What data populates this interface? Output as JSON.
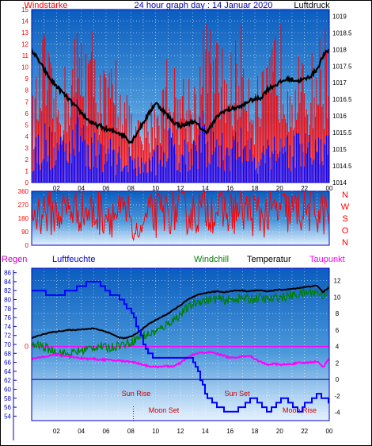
{
  "colors": {
    "wind_red": "#ff0000",
    "wind_blue": "#0000ff",
    "pressure": "#000000",
    "direction": "#ff0000",
    "regen": "#ff00ff",
    "humidity": "#0000ff",
    "windchill": "#008000",
    "temperature": "#000000",
    "dewpoint": "#ff00ff",
    "axis_red": "#ff0000",
    "axis_blue": "#0000cc",
    "sky_top": "#0a5dbf",
    "sky_bottom": "#e6f2ff",
    "sun_event": "#cc0000"
  },
  "chart_data": [
    {
      "type": "bar",
      "title": "24 hour graph day : 14 Januar 2020",
      "left_label": "Windstärke",
      "right_label": "Luftdruck",
      "x_ticks": [
        "02",
        "04",
        "06",
        "08",
        "10",
        "12",
        "14",
        "16",
        "18",
        "20",
        "22",
        "00"
      ],
      "left_ticks": [
        "0",
        "1",
        "2",
        "3",
        "4",
        "5",
        "6",
        "7",
        "8",
        "9",
        "10",
        "11",
        "12",
        "13",
        "14",
        "15"
      ],
      "right_ticks": [
        "1014",
        "1014.5",
        "1015",
        "1015.5",
        "1016",
        "1016.5",
        "1017",
        "1017.5",
        "1018",
        "1018.5",
        "1019"
      ],
      "ylim_left": [
        0,
        15
      ],
      "ylim_right": [
        1014,
        1019.2
      ],
      "series": [
        {
          "key": "gust",
          "x": [
            0,
            1,
            2,
            3,
            4,
            5,
            6,
            7,
            8,
            9,
            10,
            11,
            12,
            13,
            14,
            15,
            16,
            17,
            18,
            19,
            20,
            21,
            22,
            23,
            24
          ],
          "values": [
            7,
            13,
            8,
            11,
            14,
            13,
            9,
            11,
            6,
            5,
            8,
            11,
            9,
            9,
            14,
            12,
            11,
            14,
            9,
            10,
            14,
            12,
            10,
            12,
            14
          ]
        },
        {
          "key": "wind",
          "x": [
            0,
            1,
            2,
            3,
            4,
            5,
            6,
            7,
            8,
            9,
            10,
            11,
            12,
            13,
            14,
            15,
            16,
            17,
            18,
            19,
            20,
            21,
            22,
            23,
            24
          ],
          "values": [
            4,
            5,
            4,
            6,
            7,
            4,
            4,
            3,
            3,
            2,
            3,
            5,
            4,
            4,
            6,
            4,
            4,
            5,
            3,
            4,
            5,
            4,
            4,
            4,
            4
          ]
        },
        {
          "key": "pressure",
          "axis": "right",
          "x": [
            0,
            0.5,
            1,
            1.5,
            2,
            2.5,
            3,
            3.5,
            4,
            4.5,
            5,
            5.5,
            6,
            6.5,
            7,
            7.5,
            8,
            8.5,
            9,
            9.5,
            10,
            10.5,
            11,
            11.5,
            12,
            12.5,
            13,
            13.5,
            14,
            14.5,
            15,
            15.5,
            16,
            16.5,
            17,
            17.5,
            18,
            18.5,
            19,
            19.5,
            20,
            20.5,
            21,
            21.5,
            22,
            22.5,
            23,
            23.5,
            24
          ],
          "values": [
            1018,
            1017.7,
            1017.4,
            1017.1,
            1016.9,
            1016.7,
            1016.5,
            1016.3,
            1016.1,
            1015.9,
            1015.75,
            1015.7,
            1015.6,
            1015.55,
            1015.5,
            1015.4,
            1015.2,
            1015.5,
            1015.8,
            1016.1,
            1016.4,
            1016.2,
            1016,
            1015.8,
            1015.7,
            1015.75,
            1015.85,
            1015.7,
            1015.5,
            1015.7,
            1016,
            1016.15,
            1016.2,
            1016.25,
            1016.3,
            1016.45,
            1016.5,
            1016.55,
            1016.8,
            1016.9,
            1017,
            1017.1,
            1017.1,
            1017.05,
            1017.1,
            1017.2,
            1017.4,
            1017.8,
            1018
          ]
        }
      ]
    },
    {
      "type": "bar",
      "left_ticks": [
        "0",
        "90",
        "180",
        "270",
        "360"
      ],
      "right_letters": [
        "N",
        "W",
        "S",
        "O",
        "N"
      ],
      "ylim": [
        0,
        360
      ],
      "series": [
        {
          "key": "direction",
          "x": [
            0,
            1,
            2,
            3,
            4,
            5,
            6,
            7,
            8,
            9,
            10,
            11,
            12,
            13,
            14,
            15,
            16,
            17,
            18,
            19,
            20,
            21,
            22,
            23,
            24
          ],
          "values": [
            200,
            230,
            210,
            250,
            240,
            210,
            220,
            200,
            190,
            170,
            200,
            230,
            240,
            210,
            250,
            230,
            220,
            240,
            210,
            200,
            230,
            220,
            240,
            230,
            210
          ]
        }
      ]
    },
    {
      "type": "line",
      "legend": [
        "Regen",
        "Luftfeuchte",
        "Windchill",
        "Temperatur",
        "Taupunkt"
      ],
      "x_ticks": [
        "02",
        "04",
        "06",
        "08",
        "10",
        "12",
        "14",
        "16",
        "18",
        "20",
        "22",
        "00"
      ],
      "left_ticks": [
        "54",
        "56",
        "58",
        "60",
        "62",
        "64",
        "66",
        "68",
        "70",
        "72",
        "74",
        "76",
        "78",
        "80",
        "82",
        "84",
        "86"
      ],
      "right_ticks": [
        "-4",
        "-2",
        "0",
        "2",
        "4",
        "6",
        "8",
        "10",
        "12"
      ],
      "regen_tick": "0",
      "ylim_left": [
        53,
        87
      ],
      "ylim_right": [
        -5,
        13.5
      ],
      "annotations": [
        {
          "text": "Sun Rise",
          "x": 8.3
        },
        {
          "text": "Moon Set",
          "x": 8.3
        },
        {
          "text": "Sun Set",
          "x": 16.7
        },
        {
          "text": "Moon Rise",
          "x": 22.5
        }
      ],
      "series": [
        {
          "key": "humidity",
          "axis": "left",
          "x": [
            0,
            0.5,
            1,
            1.5,
            2,
            2.5,
            3,
            3.5,
            4,
            4.5,
            5,
            5.5,
            6,
            6.5,
            7,
            7.5,
            8,
            8.5,
            9,
            9.5,
            10,
            10.5,
            11,
            11.5,
            12,
            12.5,
            13,
            13.5,
            14,
            14.5,
            15,
            15.5,
            16,
            16.5,
            17,
            17.5,
            18,
            18.5,
            19,
            19.5,
            20,
            20.5,
            21,
            21.5,
            22,
            22.5,
            23,
            23.5,
            24
          ],
          "values": [
            82,
            82,
            81.5,
            81,
            81,
            81.5,
            82,
            82.5,
            83,
            84,
            84.5,
            83.5,
            82,
            81,
            80.5,
            79,
            77,
            74,
            70,
            68,
            67,
            67,
            67,
            67,
            67,
            67.5,
            66,
            63,
            59,
            57,
            56,
            55.5,
            55,
            55.5,
            56,
            57.5,
            58,
            56.5,
            55,
            56,
            57.5,
            58,
            56.5,
            55,
            56.5,
            57.5,
            59,
            58,
            57
          ]
        },
        {
          "key": "windchill",
          "axis": "right",
          "x": [
            0,
            0.5,
            1,
            1.5,
            2,
            2.5,
            3,
            3.5,
            4,
            4.5,
            5,
            5.5,
            6,
            6.5,
            7,
            7.5,
            8,
            8.5,
            9,
            9.5,
            10,
            10.5,
            11,
            11.5,
            12,
            12.5,
            13,
            13.5,
            14,
            14.5,
            15,
            15.5,
            16,
            16.5,
            17,
            17.5,
            18,
            18.5,
            19,
            19.5,
            20,
            20.5,
            21,
            21.5,
            22,
            22.5,
            23,
            23.5,
            24
          ],
          "values": [
            4,
            4.2,
            3.9,
            3.6,
            3.4,
            3.2,
            3,
            3.3,
            3.5,
            3.7,
            3.9,
            4.1,
            3.8,
            3.9,
            4.2,
            4.3,
            4.5,
            5,
            5.3,
            5.5,
            5.8,
            6.2,
            6.8,
            7.3,
            7.9,
            8.6,
            9.1,
            9.5,
            9.6,
            9.7,
            9.8,
            9.6,
            9.7,
            9.8,
            9.9,
            9.7,
            9.8,
            9.9,
            9.7,
            9.8,
            10,
            10,
            10.2,
            10.3,
            10.5,
            10.6,
            10.6,
            10.2,
            11
          ]
        },
        {
          "key": "temperature",
          "axis": "right",
          "x": [
            0,
            0.5,
            1,
            1.5,
            2,
            2.5,
            3,
            3.5,
            4,
            4.5,
            5,
            5.5,
            6,
            6.5,
            7,
            7.5,
            8,
            8.5,
            9,
            9.5,
            10,
            10.5,
            11,
            11.5,
            12,
            12.5,
            13,
            13.5,
            14,
            14.5,
            15,
            15.5,
            16,
            16.5,
            17,
            17.5,
            18,
            18.5,
            19,
            19.5,
            20,
            20.5,
            21,
            21.5,
            22,
            22.5,
            23,
            23.5,
            24
          ],
          "values": [
            5,
            5.3,
            5.5,
            5.7,
            5.8,
            5.9,
            6,
            6,
            6.1,
            6.1,
            6.2,
            6,
            5.8,
            5.5,
            5.1,
            5,
            5.2,
            5.6,
            6.2,
            6.8,
            7.2,
            7.6,
            8,
            8.5,
            9,
            9.6,
            10,
            10.3,
            10.5,
            10.6,
            10.7,
            10.6,
            10.7,
            10.8,
            10.8,
            10.7,
            10.8,
            10.8,
            10.7,
            10.8,
            10.9,
            10.9,
            11,
            11.1,
            11.2,
            11.3,
            11.4,
            10.6,
            11.2
          ]
        },
        {
          "key": "dewpoint",
          "axis": "right",
          "x": [
            0,
            0.5,
            1,
            1.5,
            2,
            2.5,
            3,
            3.5,
            4,
            4.5,
            5,
            5.5,
            6,
            6.5,
            7,
            7.5,
            8,
            8.5,
            9,
            9.5,
            10,
            10.5,
            11,
            11.5,
            12,
            12.5,
            13,
            13.5,
            14,
            14.5,
            15,
            15.5,
            16,
            16.5,
            17,
            17.5,
            18,
            18.5,
            19,
            19.5,
            20,
            20.5,
            21,
            21.5,
            22,
            22.5,
            23,
            23.5,
            24
          ],
          "values": [
            2.5,
            2.6,
            2.8,
            2.9,
            3,
            2.9,
            2.8,
            2.7,
            2.6,
            2.5,
            2.5,
            2.4,
            2.4,
            2.3,
            2.3,
            2.2,
            2.2,
            2,
            1.8,
            1.6,
            1.5,
            1.6,
            1.6,
            1.6,
            2,
            2.6,
            3,
            3.2,
            3.3,
            3.3,
            3.1,
            2.9,
            2.6,
            2.7,
            2.8,
            2.9,
            2.5,
            2.1,
            1.8,
            1.9,
            1.8,
            1.8,
            1.9,
            2,
            2,
            2.1,
            2.2,
            1.5,
            2.6
          ]
        },
        {
          "key": "regen",
          "axis": "right",
          "x": [
            0,
            24
          ],
          "values": [
            4,
            4
          ]
        }
      ]
    }
  ]
}
